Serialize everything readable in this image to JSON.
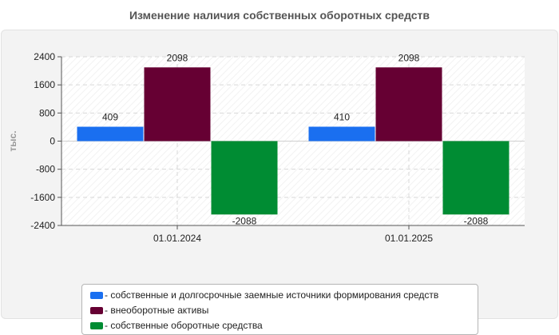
{
  "chart_data": {
    "type": "bar",
    "title": "Изменение наличия собственных оборотных средств",
    "ylabel": "тыс.",
    "xlabel": "",
    "categories": [
      "01.01.2024",
      "01.01.2025"
    ],
    "ylim": [
      -2400,
      2400
    ],
    "yticks": [
      2400,
      1600,
      800,
      0,
      -800,
      -1600,
      -2400
    ],
    "ytick_labels": [
      "2400",
      "1600",
      "800",
      "0",
      "-800",
      "-1600",
      "-2400"
    ],
    "grid": true,
    "legend_position": "bottom",
    "series": [
      {
        "name": "- собственные и долгосрочные заемные источники формирования средств",
        "color": "#1a6ff0",
        "values": [
          409,
          410
        ]
      },
      {
        "name": "- внеоборотные активы",
        "color": "#660033",
        "values": [
          2098,
          2098
        ]
      },
      {
        "name": "- собственные оборотные средства",
        "color": "#008c33",
        "values": [
          -2088,
          -2088
        ]
      }
    ]
  }
}
